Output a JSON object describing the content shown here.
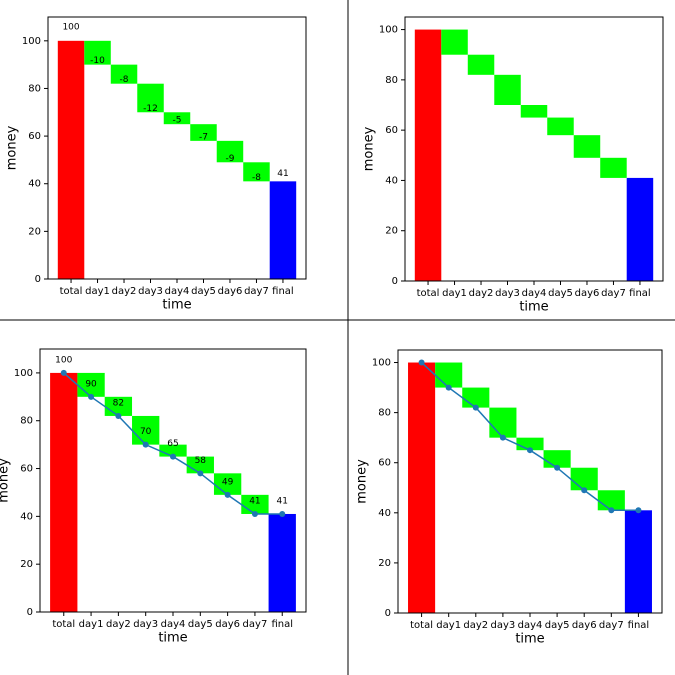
{
  "chart_data": [
    {
      "type": "waterfall",
      "categories": [
        "total",
        "day1",
        "day2",
        "day3",
        "day4",
        "day5",
        "day6",
        "day7",
        "final"
      ],
      "values": [
        100,
        -10,
        -8,
        -12,
        -5,
        -7,
        -9,
        -8,
        41
      ],
      "total_color": "#ff0000",
      "change_color": "#00ff00",
      "final_color": "#0000ff",
      "xlabel": "time",
      "ylabel": "money",
      "ylim": [
        0,
        110
      ],
      "yticks": [
        0,
        20,
        40,
        60,
        80,
        100
      ],
      "show_value_labels": true
    },
    {
      "type": "waterfall",
      "categories": [
        "total",
        "day1",
        "day2",
        "day3",
        "day4",
        "day5",
        "day6",
        "day7",
        "final"
      ],
      "values": [
        100,
        -10,
        -8,
        -12,
        -5,
        -7,
        -9,
        -8,
        41
      ],
      "total_color": "#ff0000",
      "change_color": "#00ff00",
      "final_color": "#0000ff",
      "xlabel": "time",
      "ylabel": "money",
      "ylim": [
        0,
        105
      ],
      "yticks": [
        0,
        20,
        40,
        60,
        80,
        100
      ],
      "show_value_labels": false
    },
    {
      "type": "waterfall",
      "categories": [
        "total",
        "day1",
        "day2",
        "day3",
        "day4",
        "day5",
        "day6",
        "day7",
        "final"
      ],
      "values": [
        100,
        -10,
        -8,
        -12,
        -5,
        -7,
        -9,
        -8,
        41
      ],
      "total_color": "#ff0000",
      "change_color": "#00ff00",
      "final_color": "#0000ff",
      "xlabel": "time",
      "ylabel": "money",
      "ylim": [
        0,
        110
      ],
      "yticks": [
        0,
        20,
        40,
        60,
        80,
        100
      ],
      "show_value_labels": false,
      "line": {
        "color": "#1f77b4",
        "values": [
          100,
          90,
          82,
          70,
          65,
          58,
          49,
          41,
          41
        ],
        "show_labels": true
      }
    },
    {
      "type": "waterfall",
      "categories": [
        "total",
        "day1",
        "day2",
        "day3",
        "day4",
        "day5",
        "day6",
        "day7",
        "final"
      ],
      "values": [
        100,
        -10,
        -8,
        -12,
        -5,
        -7,
        -9,
        -8,
        41
      ],
      "total_color": "#ff0000",
      "change_color": "#00ff00",
      "final_color": "#0000ff",
      "xlabel": "time",
      "ylabel": "money",
      "ylim": [
        0,
        105
      ],
      "yticks": [
        0,
        20,
        40,
        60,
        80,
        100
      ],
      "show_value_labels": false,
      "line": {
        "color": "#1f77b4",
        "values": [
          100,
          90,
          82,
          70,
          65,
          58,
          49,
          41,
          41
        ],
        "show_labels": false
      }
    }
  ]
}
